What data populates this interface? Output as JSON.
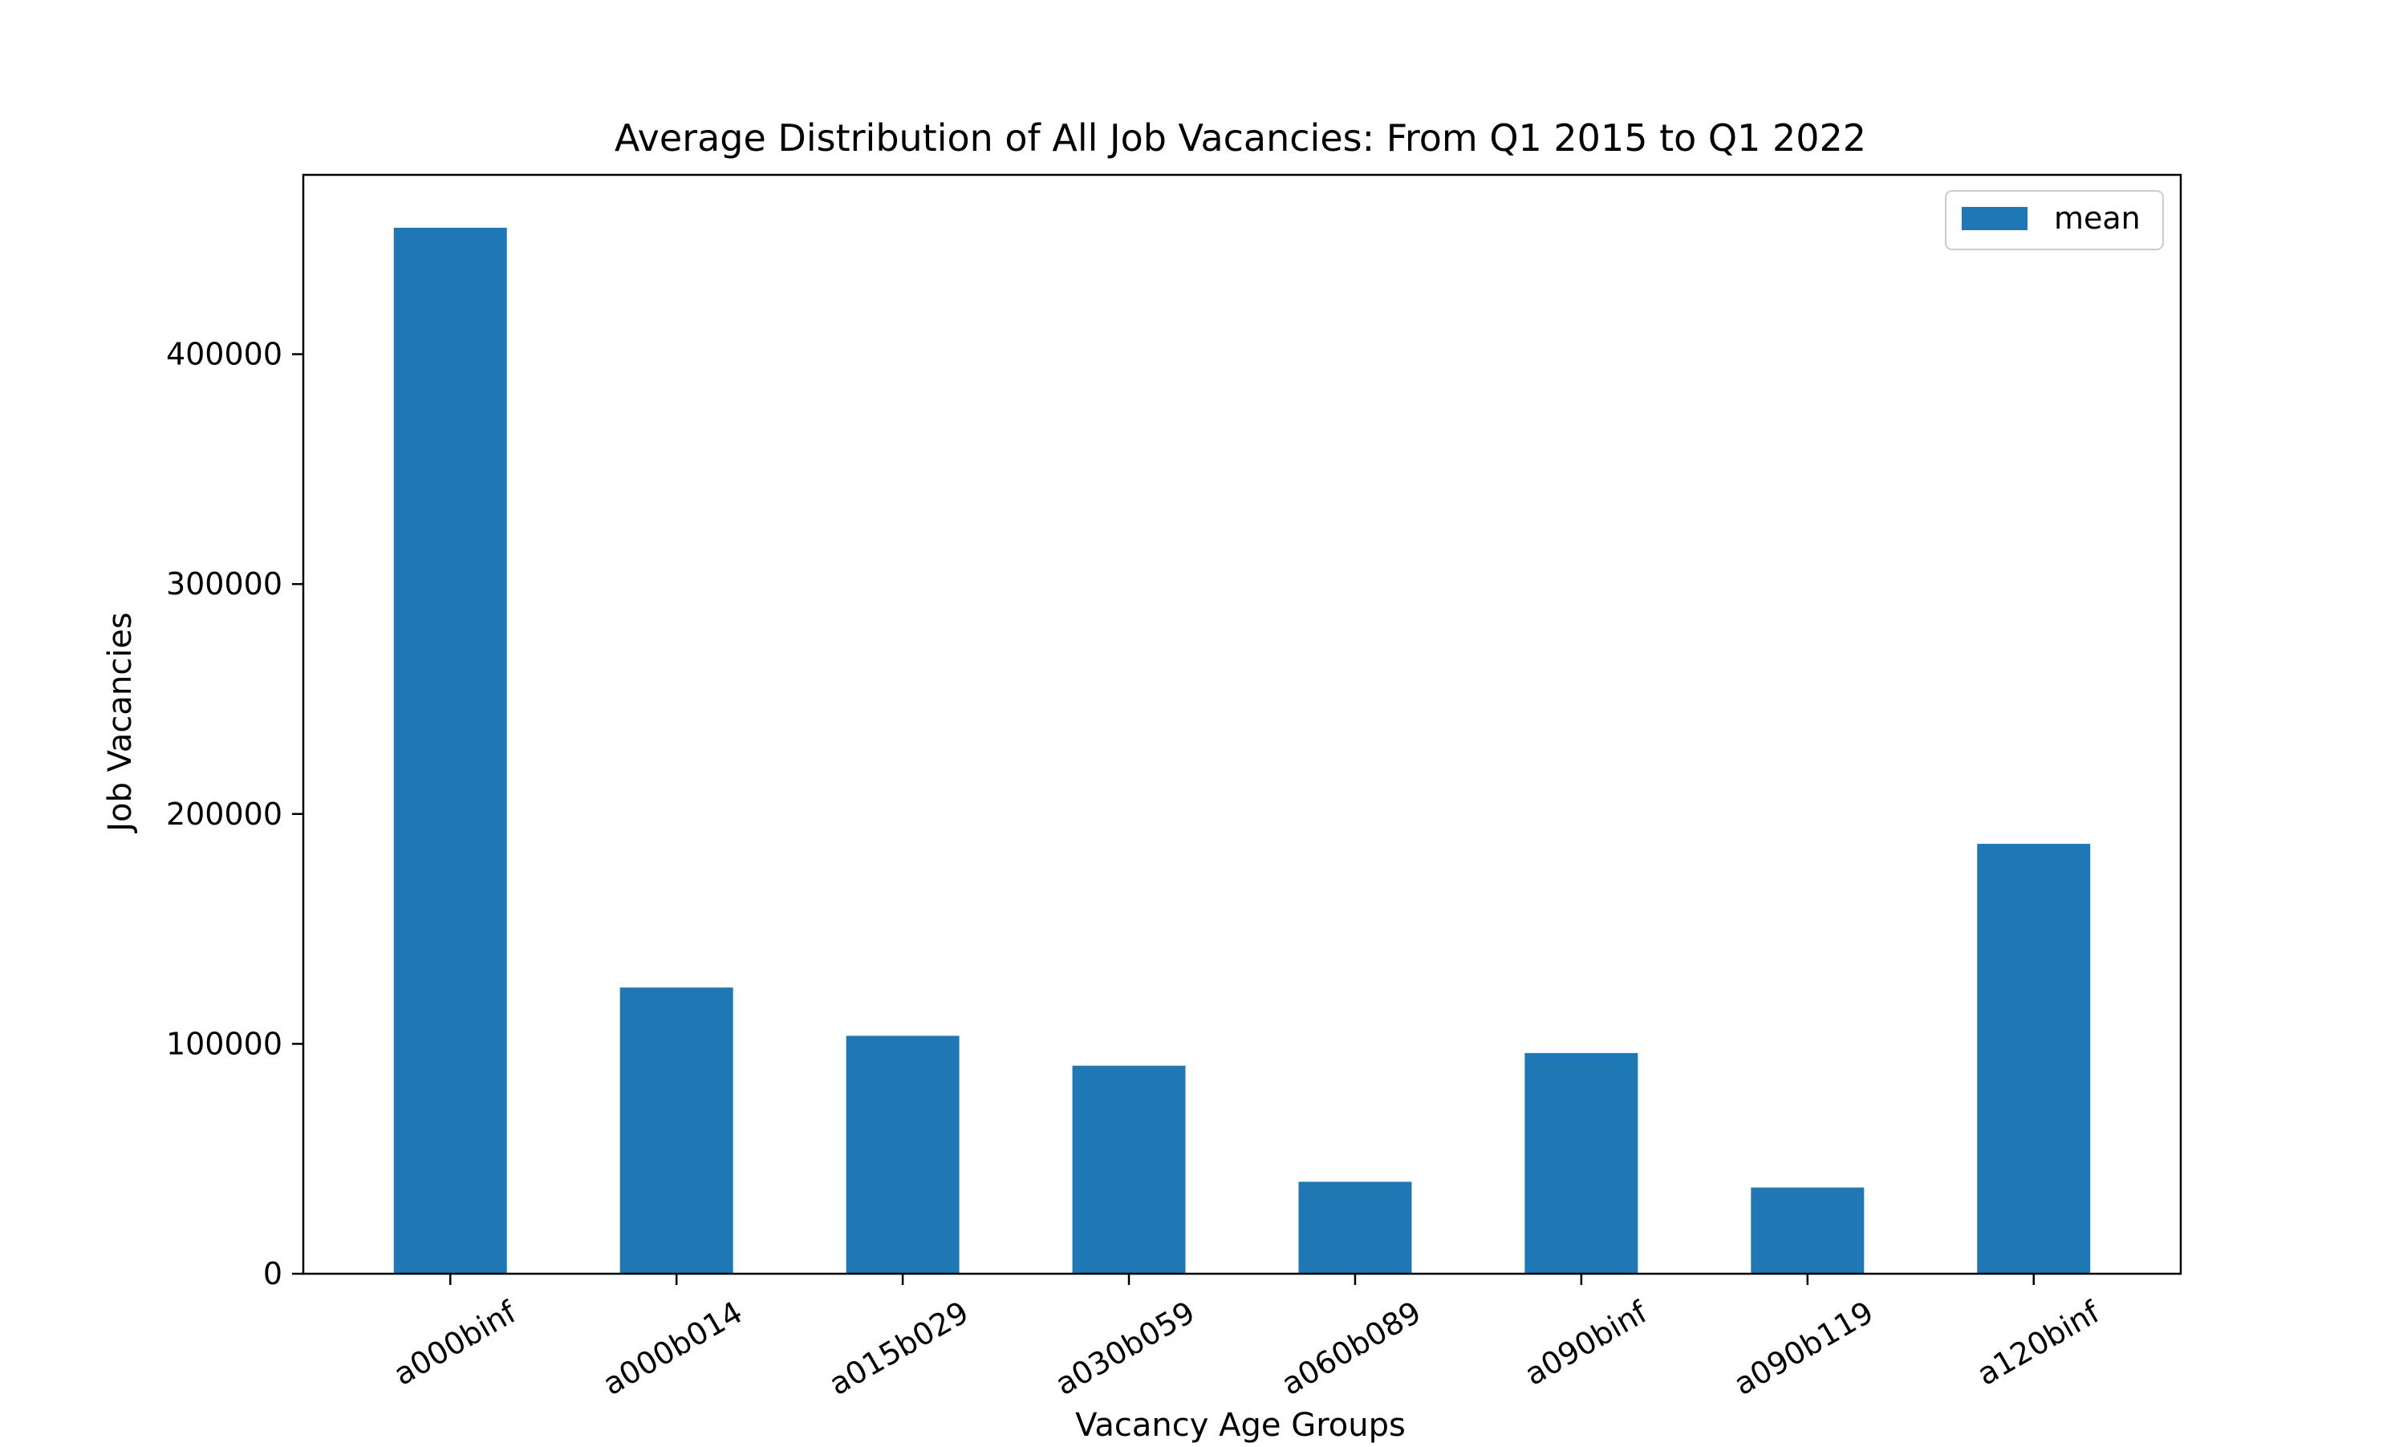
{
  "chart_data": {
    "type": "bar",
    "title": "Average Distribution of All Job Vacancies: From Q1 2015 to Q1 2022",
    "xlabel": "Vacancy Age Groups",
    "ylabel": "Job Vacancies",
    "categories": [
      "a000binf",
      "a000b014",
      "a015b029",
      "a030b059",
      "a060b089",
      "a090binf",
      "a090b119",
      "a120binf"
    ],
    "series": [
      {
        "name": "mean",
        "color": "#1f77b4",
        "values": [
          455000,
          124500,
          103500,
          90500,
          40000,
          96000,
          37500,
          187000
        ]
      }
    ],
    "ylim": [
      0,
      478000
    ],
    "yticks": [
      0,
      100000,
      200000,
      300000,
      400000
    ],
    "ytick_labels": [
      "0",
      "100000",
      "200000",
      "300000",
      "400000"
    ],
    "grid": false,
    "legend_position": "top-right",
    "xtick_rotation": "30"
  }
}
